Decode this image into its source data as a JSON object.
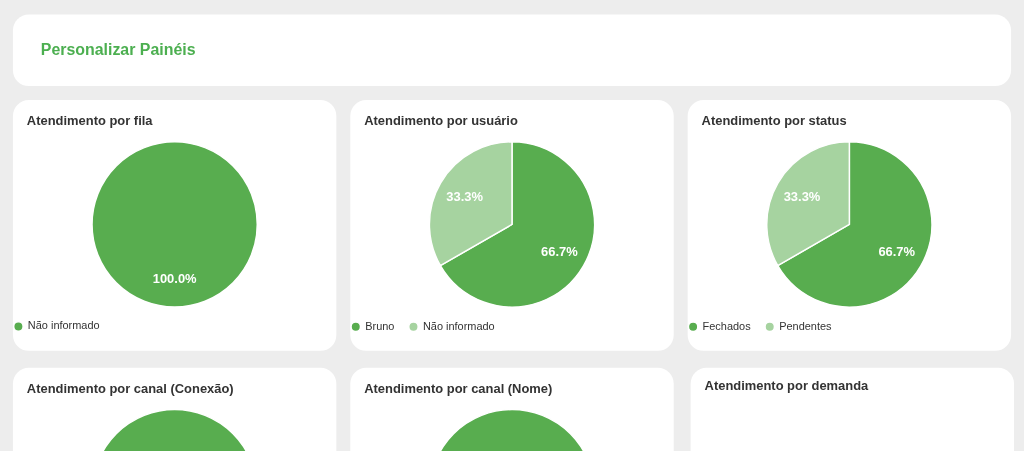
{
  "chart_data": [
    {
      "type": "other",
      "title": "Personalizar Painéis"
    },
    {
      "type": "pie",
      "title": "Atendimento por fila",
      "categories": [
        "Não informado"
      ],
      "values": [
        100
      ],
      "colors": [
        "#58ad4f"
      ],
      "value_labels": [
        "100.0%"
      ],
      "legend": "bottom"
    },
    {
      "type": "pie",
      "title": "Atendimento por usuário",
      "categories": [
        "Bruno",
        "Não informado"
      ],
      "values": [
        66.7,
        33.3
      ],
      "colors": [
        "#58ad4f",
        "#a6d3a0"
      ],
      "value_labels": [
        "66.7%",
        "33.3%"
      ],
      "legend": "bottom"
    },
    {
      "type": "pie",
      "title": "Atendimento por status",
      "categories": [
        "Fechados",
        "Pendentes"
      ],
      "values": [
        66.7,
        33.3
      ],
      "colors": [
        "#58ad4f",
        "#a6d3a0"
      ],
      "value_labels": [
        "66.7%",
        "33.3%"
      ],
      "legend": "bottom"
    },
    {
      "type": "pie",
      "title": "Atendimento por canal (Conexão)",
      "categories": [
        null
      ],
      "values": [
        100
      ],
      "colors": [
        "#58ad4f"
      ]
    },
    {
      "type": "pie",
      "title": "Atendimento por canal (Nome)",
      "categories": [
        null
      ],
      "values": [
        100
      ],
      "colors": [
        "#58ad4f"
      ]
    },
    {
      "type": "other",
      "title": "Atendimento por demanda"
    }
  ]
}
